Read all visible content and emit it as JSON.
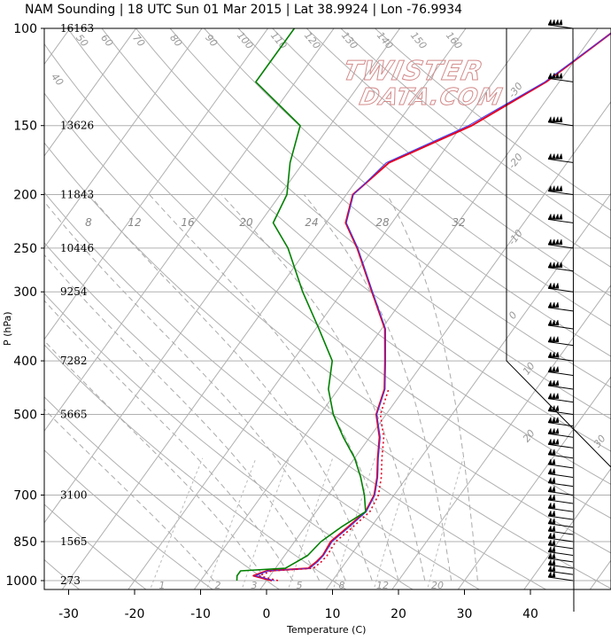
{
  "title": "NAM Sounding | 18 UTC Sun 01 Mar 2015 | Lat 38.9924 | Lon -76.9934",
  "watermark": [
    "TWISTER",
    "DATA.COM"
  ],
  "colors": {
    "temperature": "#e8001c",
    "virtual_temperature": "#3b3bff",
    "dewpoint": "#008000",
    "grid": "#b0b0b0",
    "label_grey": "#999999"
  },
  "chart_data": {
    "type": "skew-t",
    "xlabel": "Temperature (C)",
    "ylabel": "P (hPa)",
    "x_ticks": [
      -30,
      -20,
      -10,
      0,
      10,
      20,
      30,
      40
    ],
    "pressure_ticks": [
      100,
      150,
      200,
      250,
      300,
      400,
      500,
      700,
      850,
      1000
    ],
    "heights": [
      {
        "p": 100,
        "label": "16163"
      },
      {
        "p": 150,
        "label": "13626"
      },
      {
        "p": 200,
        "label": "11843"
      },
      {
        "p": 250,
        "label": "10446"
      },
      {
        "p": 300,
        "label": "9254"
      },
      {
        "p": 400,
        "label": "7282"
      },
      {
        "p": 500,
        "label": "5665"
      },
      {
        "p": 700,
        "label": "3100"
      },
      {
        "p": 850,
        "label": "1565"
      },
      {
        "p": 1000,
        "label": "273"
      }
    ],
    "isotherm_labels": [
      "-30",
      "-20",
      "-10",
      "0",
      "10",
      "20",
      "30"
    ],
    "dry_adiabat_labels": [
      "40",
      "50",
      "60",
      "70",
      "80",
      "90",
      "100",
      "110",
      "120",
      "130",
      "140",
      "150",
      "160"
    ],
    "mixing_ratio_labels": [
      "1",
      "2",
      "3",
      "5",
      "8",
      "12",
      "20"
    ],
    "moist_adiabat_labels": [
      "8",
      "12",
      "16",
      "20",
      "24",
      "28",
      "32"
    ],
    "series": [
      {
        "name": "Temperature",
        "values": [
          [
            1000,
            0.8
          ],
          [
            980,
            -2.5
          ],
          [
            960,
            -1.0
          ],
          [
            950,
            5.0
          ],
          [
            925,
            5.5
          ],
          [
            900,
            5.8
          ],
          [
            850,
            5.5
          ],
          [
            800,
            6.5
          ],
          [
            750,
            7.5
          ],
          [
            700,
            7.0
          ],
          [
            650,
            5.5
          ],
          [
            600,
            3.5
          ],
          [
            550,
            1.5
          ],
          [
            500,
            -1.5
          ],
          [
            450,
            -3.0
          ],
          [
            400,
            -6.0
          ],
          [
            350,
            -9.5
          ],
          [
            300,
            -15.5
          ],
          [
            250,
            -22.5
          ],
          [
            225,
            -27.0
          ],
          [
            200,
            -29.0
          ],
          [
            175,
            -27.0
          ],
          [
            150,
            -18.5
          ],
          [
            125,
            -12.0
          ],
          [
            100,
            -7.0
          ]
        ]
      },
      {
        "name": "Virtual Temperature",
        "values": [
          [
            1000,
            1.2
          ],
          [
            980,
            -2.2
          ],
          [
            960,
            -0.8
          ],
          [
            950,
            5.2
          ],
          [
            925,
            5.7
          ],
          [
            900,
            5.9
          ],
          [
            850,
            5.7
          ],
          [
            800,
            6.7
          ],
          [
            750,
            7.6
          ],
          [
            700,
            7.1
          ],
          [
            650,
            5.6
          ],
          [
            600,
            3.6
          ],
          [
            550,
            1.6
          ],
          [
            500,
            -1.4
          ],
          [
            450,
            -2.9
          ],
          [
            400,
            -5.9
          ],
          [
            350,
            -9.4
          ],
          [
            300,
            -15.4
          ],
          [
            250,
            -22.4
          ],
          [
            225,
            -26.9
          ],
          [
            200,
            -28.9
          ],
          [
            175,
            -27.4
          ],
          [
            150,
            -19.0
          ],
          [
            125,
            -12.2
          ],
          [
            100,
            -7.0
          ]
        ]
      },
      {
        "name": "Dewpoint",
        "values": [
          [
            1000,
            -4.5
          ],
          [
            980,
            -5.0
          ],
          [
            960,
            -5.0
          ],
          [
            950,
            1.5
          ],
          [
            925,
            2.5
          ],
          [
            900,
            3.5
          ],
          [
            850,
            4.0
          ],
          [
            800,
            5.5
          ],
          [
            750,
            7.5
          ],
          [
            700,
            5.5
          ],
          [
            650,
            3.0
          ],
          [
            600,
            0.0
          ],
          [
            550,
            -4.0
          ],
          [
            500,
            -8.0
          ],
          [
            450,
            -11.5
          ],
          [
            400,
            -14.0
          ],
          [
            350,
            -19.5
          ],
          [
            300,
            -26.0
          ],
          [
            250,
            -33.0
          ],
          [
            225,
            -38.0
          ],
          [
            200,
            -39.0
          ],
          [
            175,
            -42.0
          ],
          [
            150,
            -44.5
          ],
          [
            125,
            -56.0
          ],
          [
            100,
            -56.0
          ]
        ]
      }
    ],
    "hodograph_profile": "vertical line to 100 hPa, diagonal boundary at 400 hPa and 600 hPa",
    "wind_barbs": [
      100,
      125,
      150,
      175,
      200,
      225,
      250,
      275,
      300,
      325,
      350,
      375,
      400,
      425,
      450,
      475,
      500,
      525,
      550,
      575,
      600,
      625,
      650,
      675,
      700,
      725,
      750,
      775,
      800,
      825,
      850,
      875,
      900,
      925,
      950,
      975,
      1000
    ]
  }
}
